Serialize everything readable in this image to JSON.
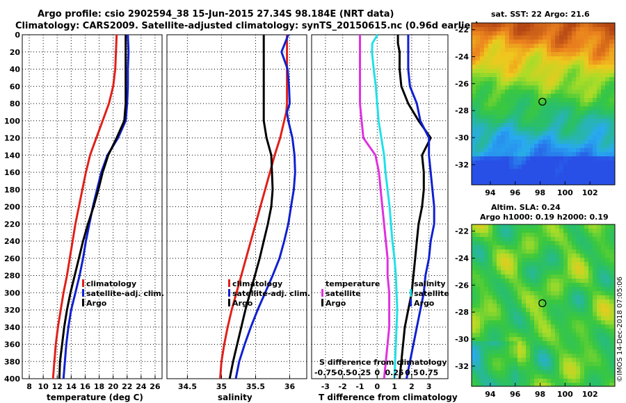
{
  "header": {
    "line1": "Argo profile: csio 2902594_38 15-Jun-2015 27.34S 98.184E (NRT data)",
    "line2": "Climatology: CARS2009. Satellite-adjusted climatology: synTS_20150615.nc (0.96d earlier)"
  },
  "colors": {
    "climatology": "#e0201a",
    "satellite": "#1020d0",
    "argo": "#000000",
    "t_diff": "#e030e0",
    "s_diff": "#20e0e8",
    "grid": "#000000"
  },
  "chart_data": [
    {
      "type": "line",
      "id": "temperature",
      "xlabel": "temperature (deg C)",
      "xlim": [
        7,
        27
      ],
      "ylim": [
        0,
        400
      ],
      "xticks": [
        "8",
        "10",
        "12",
        "14",
        "16",
        "18",
        "20",
        "22",
        "24",
        "26"
      ],
      "xtick_values": [
        8,
        10,
        12,
        14,
        16,
        18,
        20,
        22,
        24,
        26
      ],
      "yticks": [
        "0",
        "20",
        "40",
        "60",
        "80",
        "100",
        "120",
        "140",
        "160",
        "180",
        "200",
        "220",
        "240",
        "260",
        "280",
        "300",
        "320",
        "340",
        "360",
        "380",
        "400"
      ],
      "depth": [
        0,
        20,
        40,
        60,
        80,
        100,
        120,
        140,
        160,
        180,
        200,
        220,
        240,
        260,
        280,
        300,
        320,
        340,
        360,
        380,
        400
      ],
      "series": [
        {
          "name": "climatology",
          "color_key": "climatology",
          "values": [
            20.5,
            20.4,
            20.3,
            20.0,
            19.4,
            18.5,
            17.6,
            16.7,
            16.1,
            15.6,
            15.1,
            14.6,
            14.2,
            13.8,
            13.4,
            12.9,
            12.5,
            12.1,
            11.8,
            11.6,
            11.4
          ]
        },
        {
          "name": "satellite-adj. clim.",
          "color_key": "satellite",
          "values": [
            22.1,
            22.2,
            22.1,
            22.1,
            22.0,
            21.8,
            20.7,
            19.2,
            18.3,
            17.7,
            17.1,
            16.6,
            16.1,
            15.7,
            15.2,
            14.6,
            14.0,
            13.6,
            13.3,
            13.1,
            12.9
          ]
        },
        {
          "name": "Argo",
          "color_key": "argo",
          "values": [
            21.8,
            21.8,
            21.8,
            21.8,
            21.8,
            21.6,
            20.5,
            19.3,
            18.5,
            17.9,
            17.2,
            16.4,
            15.7,
            15.1,
            14.5,
            13.9,
            13.4,
            13.0,
            12.7,
            12.4,
            12.3
          ]
        }
      ],
      "legend": [
        "climatology",
        "satellite-adj. clim.",
        "Argo"
      ],
      "legend_position": "lower-right"
    },
    {
      "type": "line",
      "id": "salinity",
      "xlabel": "salinity",
      "xlim": [
        34.2,
        36.25
      ],
      "ylim": [
        0,
        400
      ],
      "xticks": [
        "34.5",
        "35",
        "35.5",
        "36"
      ],
      "xtick_values": [
        34.5,
        35,
        35.5,
        36
      ],
      "depth": [
        0,
        20,
        40,
        60,
        80,
        90,
        100,
        120,
        140,
        160,
        180,
        200,
        220,
        240,
        260,
        280,
        300,
        320,
        340,
        360,
        380,
        400
      ],
      "series": [
        {
          "name": "climatology",
          "color_key": "climatology",
          "values": [
            35.96,
            35.96,
            35.96,
            35.96,
            35.96,
            35.95,
            35.92,
            35.86,
            35.78,
            35.71,
            35.64,
            35.57,
            35.5,
            35.43,
            35.36,
            35.29,
            35.22,
            35.15,
            35.09,
            35.04,
            35.0,
            34.98
          ]
        },
        {
          "name": "satellite-adj. clim.",
          "color_key": "satellite",
          "values": [
            35.98,
            35.88,
            35.97,
            35.99,
            36.0,
            35.96,
            35.98,
            36.04,
            36.07,
            36.08,
            36.06,
            36.02,
            35.98,
            35.92,
            35.85,
            35.75,
            35.64,
            35.53,
            35.43,
            35.34,
            35.26,
            35.21
          ]
        },
        {
          "name": "Argo",
          "color_key": "argo",
          "values": [
            35.62,
            35.62,
            35.62,
            35.62,
            35.62,
            35.62,
            35.62,
            35.66,
            35.73,
            35.74,
            35.75,
            35.73,
            35.68,
            35.62,
            35.56,
            35.49,
            35.42,
            35.35,
            35.29,
            35.23,
            35.17,
            35.12
          ]
        }
      ],
      "legend": [
        "climatology",
        "satellite-adj. clim.",
        "Argo"
      ],
      "legend_position": "lower-right"
    },
    {
      "type": "line",
      "id": "difference",
      "xlabel": "T difference from climatology",
      "xlabel2": "S difference from climatology",
      "xlim": [
        -3.8,
        4.1
      ],
      "s_xlim": [
        -0.95,
        1.025
      ],
      "ylim": [
        0,
        400
      ],
      "xticks": [
        "-3",
        "-2",
        "-1",
        "0",
        "1",
        "2",
        "3"
      ],
      "xtick_values": [
        -3,
        -2,
        -1,
        0,
        1,
        2,
        3
      ],
      "s_xticks": [
        "-0.75",
        "-0.5",
        "-0.25",
        "0",
        "0.25",
        "0.5",
        "0.75"
      ],
      "s_xtick_values": [
        -0.75,
        -0.5,
        -0.25,
        0,
        0.25,
        0.5,
        0.75
      ],
      "depth": [
        0,
        10,
        20,
        40,
        60,
        80,
        100,
        120,
        140,
        160,
        180,
        200,
        220,
        240,
        260,
        280,
        300,
        320,
        340,
        360,
        380,
        400
      ],
      "series": [
        {
          "name": "temperature satellite",
          "color_key": "t_diff",
          "values": [
            -1.0,
            -1.0,
            -1.0,
            -1.0,
            -1.0,
            -1.0,
            -0.9,
            -0.8,
            -0.1,
            0.1,
            0.2,
            0.3,
            0.4,
            0.5,
            0.6,
            0.6,
            0.7,
            0.7,
            0.7,
            0.6,
            0.5,
            0.4
          ]
        },
        {
          "name": "salinity satellite",
          "color_key": "s_diff",
          "values": [
            0.005,
            -0.07,
            -0.075,
            -0.05,
            -0.02,
            0.0,
            0.02,
            0.06,
            0.1,
            0.12,
            0.15,
            0.18,
            0.2,
            0.22,
            0.25,
            0.27,
            0.28,
            0.29,
            0.28,
            0.27,
            0.26,
            0.25
          ]
        },
        {
          "name": "temperature Argo",
          "color_key": "argo",
          "values": [
            1.2,
            1.2,
            1.3,
            1.3,
            1.4,
            1.8,
            2.4,
            3.1,
            2.6,
            2.7,
            2.7,
            2.6,
            2.4,
            2.3,
            2.2,
            2.1,
            2.0,
            1.8,
            1.6,
            1.5,
            1.4,
            1.3
          ]
        },
        {
          "name": "salinity Argo",
          "color_key": "satellite",
          "values": [
            1.8,
            1.8,
            1.8,
            1.8,
            1.9,
            2.3,
            2.5,
            3.0,
            3.0,
            3.1,
            3.2,
            3.3,
            3.3,
            3.1,
            3.0,
            2.8,
            2.7,
            2.5,
            2.3,
            2.1,
            1.9,
            1.7
          ]
        }
      ],
      "legend_left_title": "temperature",
      "legend_right_title": "salinity",
      "legend": [
        "satellite",
        "Argo"
      ],
      "legend_position": "lower"
    },
    {
      "type": "heatmap",
      "id": "sst-map",
      "title": "sat. SST: 22 Argo: 21.6",
      "xlim": [
        92.5,
        104.0
      ],
      "ylim": [
        -33.5,
        -21.5
      ],
      "xticks": [
        "94",
        "96",
        "98",
        "100",
        "102"
      ],
      "xtick_values": [
        94,
        96,
        98,
        100,
        102
      ],
      "yticks": [
        "-22",
        "-24",
        "-26",
        "-28",
        "-30",
        "-32"
      ],
      "ytick_values": [
        -22,
        -24,
        -26,
        -28,
        -30,
        -32
      ],
      "marker": {
        "lon": 98.184,
        "lat": -27.34
      }
    },
    {
      "type": "heatmap",
      "id": "sla-map",
      "title": "Altim. SLA: 0.24",
      "subtitle": "Argo h1000: 0.19 h2000: 0.19",
      "xlim": [
        92.5,
        104.0
      ],
      "ylim": [
        -33.5,
        -21.5
      ],
      "xticks": [
        "94",
        "96",
        "98",
        "100",
        "102"
      ],
      "xtick_values": [
        94,
        96,
        98,
        100,
        102
      ],
      "yticks": [
        "-22",
        "-24",
        "-26",
        "-28",
        "-30",
        "-32"
      ],
      "ytick_values": [
        -22,
        -24,
        -26,
        -28,
        -30,
        -32
      ],
      "marker": {
        "lon": 98.184,
        "lat": -27.34
      }
    }
  ],
  "watermark": "©IMOS 14-Dec-2018 07:05:06"
}
